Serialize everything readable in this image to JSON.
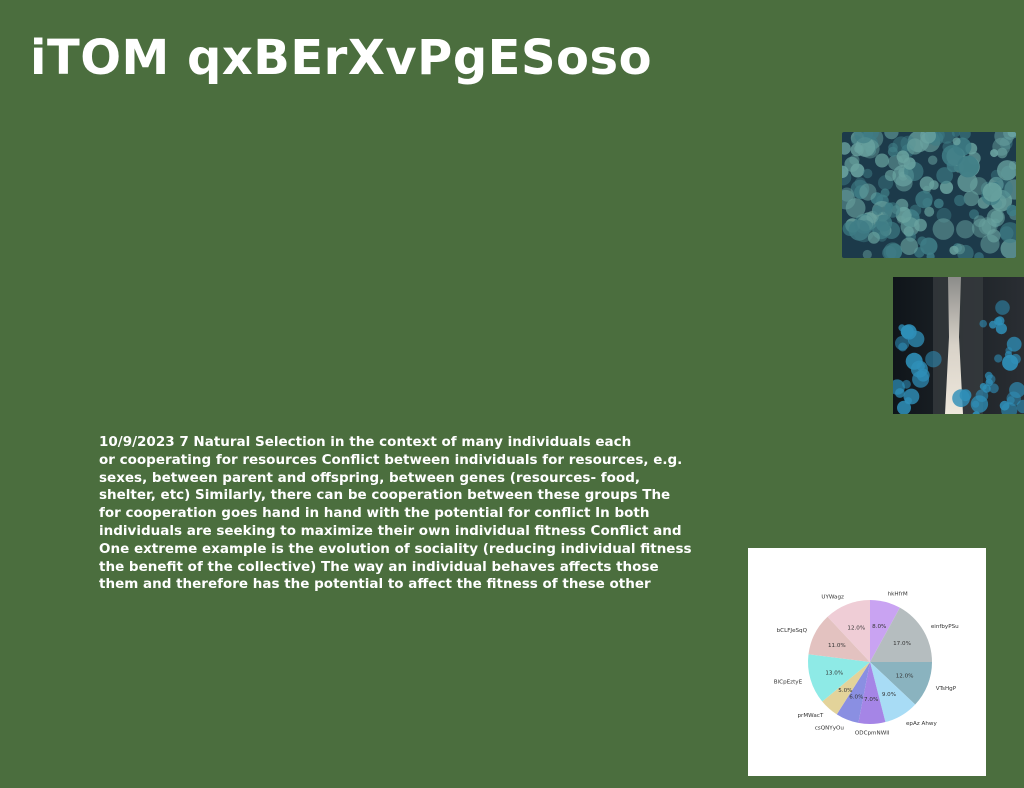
{
  "page": {
    "title": "iTOM qxBErXvPgESoso",
    "background_color": "#4b6e3e"
  },
  "images": [
    {
      "name": "forest-aerial-photo",
      "colors": [
        "#1c3a4a",
        "#3f7d86",
        "#6aa3a0"
      ]
    },
    {
      "name": "waterfall-forest-photo",
      "colors": [
        "#141c22",
        "#2f8fb8",
        "#d8d2c8"
      ]
    }
  ],
  "body_text": {
    "lines": [
      "10/9/2023 7 Natural Selection in the context of many individuals each",
      "or cooperating for resources Conflict between individuals for resources, e.g.",
      "sexes, between parent and offspring, between genes (resources- food,",
      "shelter, etc) Similarly, there can be cooperation between these groups The",
      "for cooperation goes hand in hand with the potential for conflict In both",
      "individuals are seeking to maximize their own individual fitness Conflict and",
      "One extreme example is the evolution of sociality (reducing individual fitness",
      "the benefit of the collective) The way an individual behaves affects those",
      "them and therefore has the potential to affect the fitness of these other"
    ]
  },
  "chart_data": {
    "type": "pie",
    "start_angle_deg": 90,
    "direction": "clockwise",
    "slices": [
      {
        "label": "hkHfrM",
        "value": 8.0,
        "pct_label": "8.0%",
        "color": "#c9a3f2"
      },
      {
        "label": "einfbyPSu",
        "value": 17.0,
        "pct_label": "17.0%",
        "color": "#b5bdbf"
      },
      {
        "label": "VTsHgP",
        "value": 12.0,
        "pct_label": "12.0%",
        "color": "#8ab3bf"
      },
      {
        "label": "epAz Ahwy",
        "value": 9.0,
        "pct_label": "9.0%",
        "color": "#a8dcf5"
      },
      {
        "label": "ODCpmNWII",
        "value": 7.0,
        "pct_label": "7.0%",
        "color": "#a585e6"
      },
      {
        "label": "csQNYyOu",
        "value": 6.0,
        "pct_label": "6.0%",
        "color": "#8a8fe2"
      },
      {
        "label": "prMWacT",
        "value": 5.0,
        "pct_label": "5.0%",
        "color": "#e3d39a"
      },
      {
        "label": "BlCpEztyE",
        "value": 13.0,
        "pct_label": "13.0%",
        "color": "#8eeae6"
      },
      {
        "label": "bCLFJeSqQ",
        "value": 11.0,
        "pct_label": "11.0%",
        "color": "#e3c2c0"
      },
      {
        "label": "UYWagz",
        "value": 12.0,
        "pct_label": "12.0%",
        "color": "#efcdd6"
      }
    ]
  }
}
